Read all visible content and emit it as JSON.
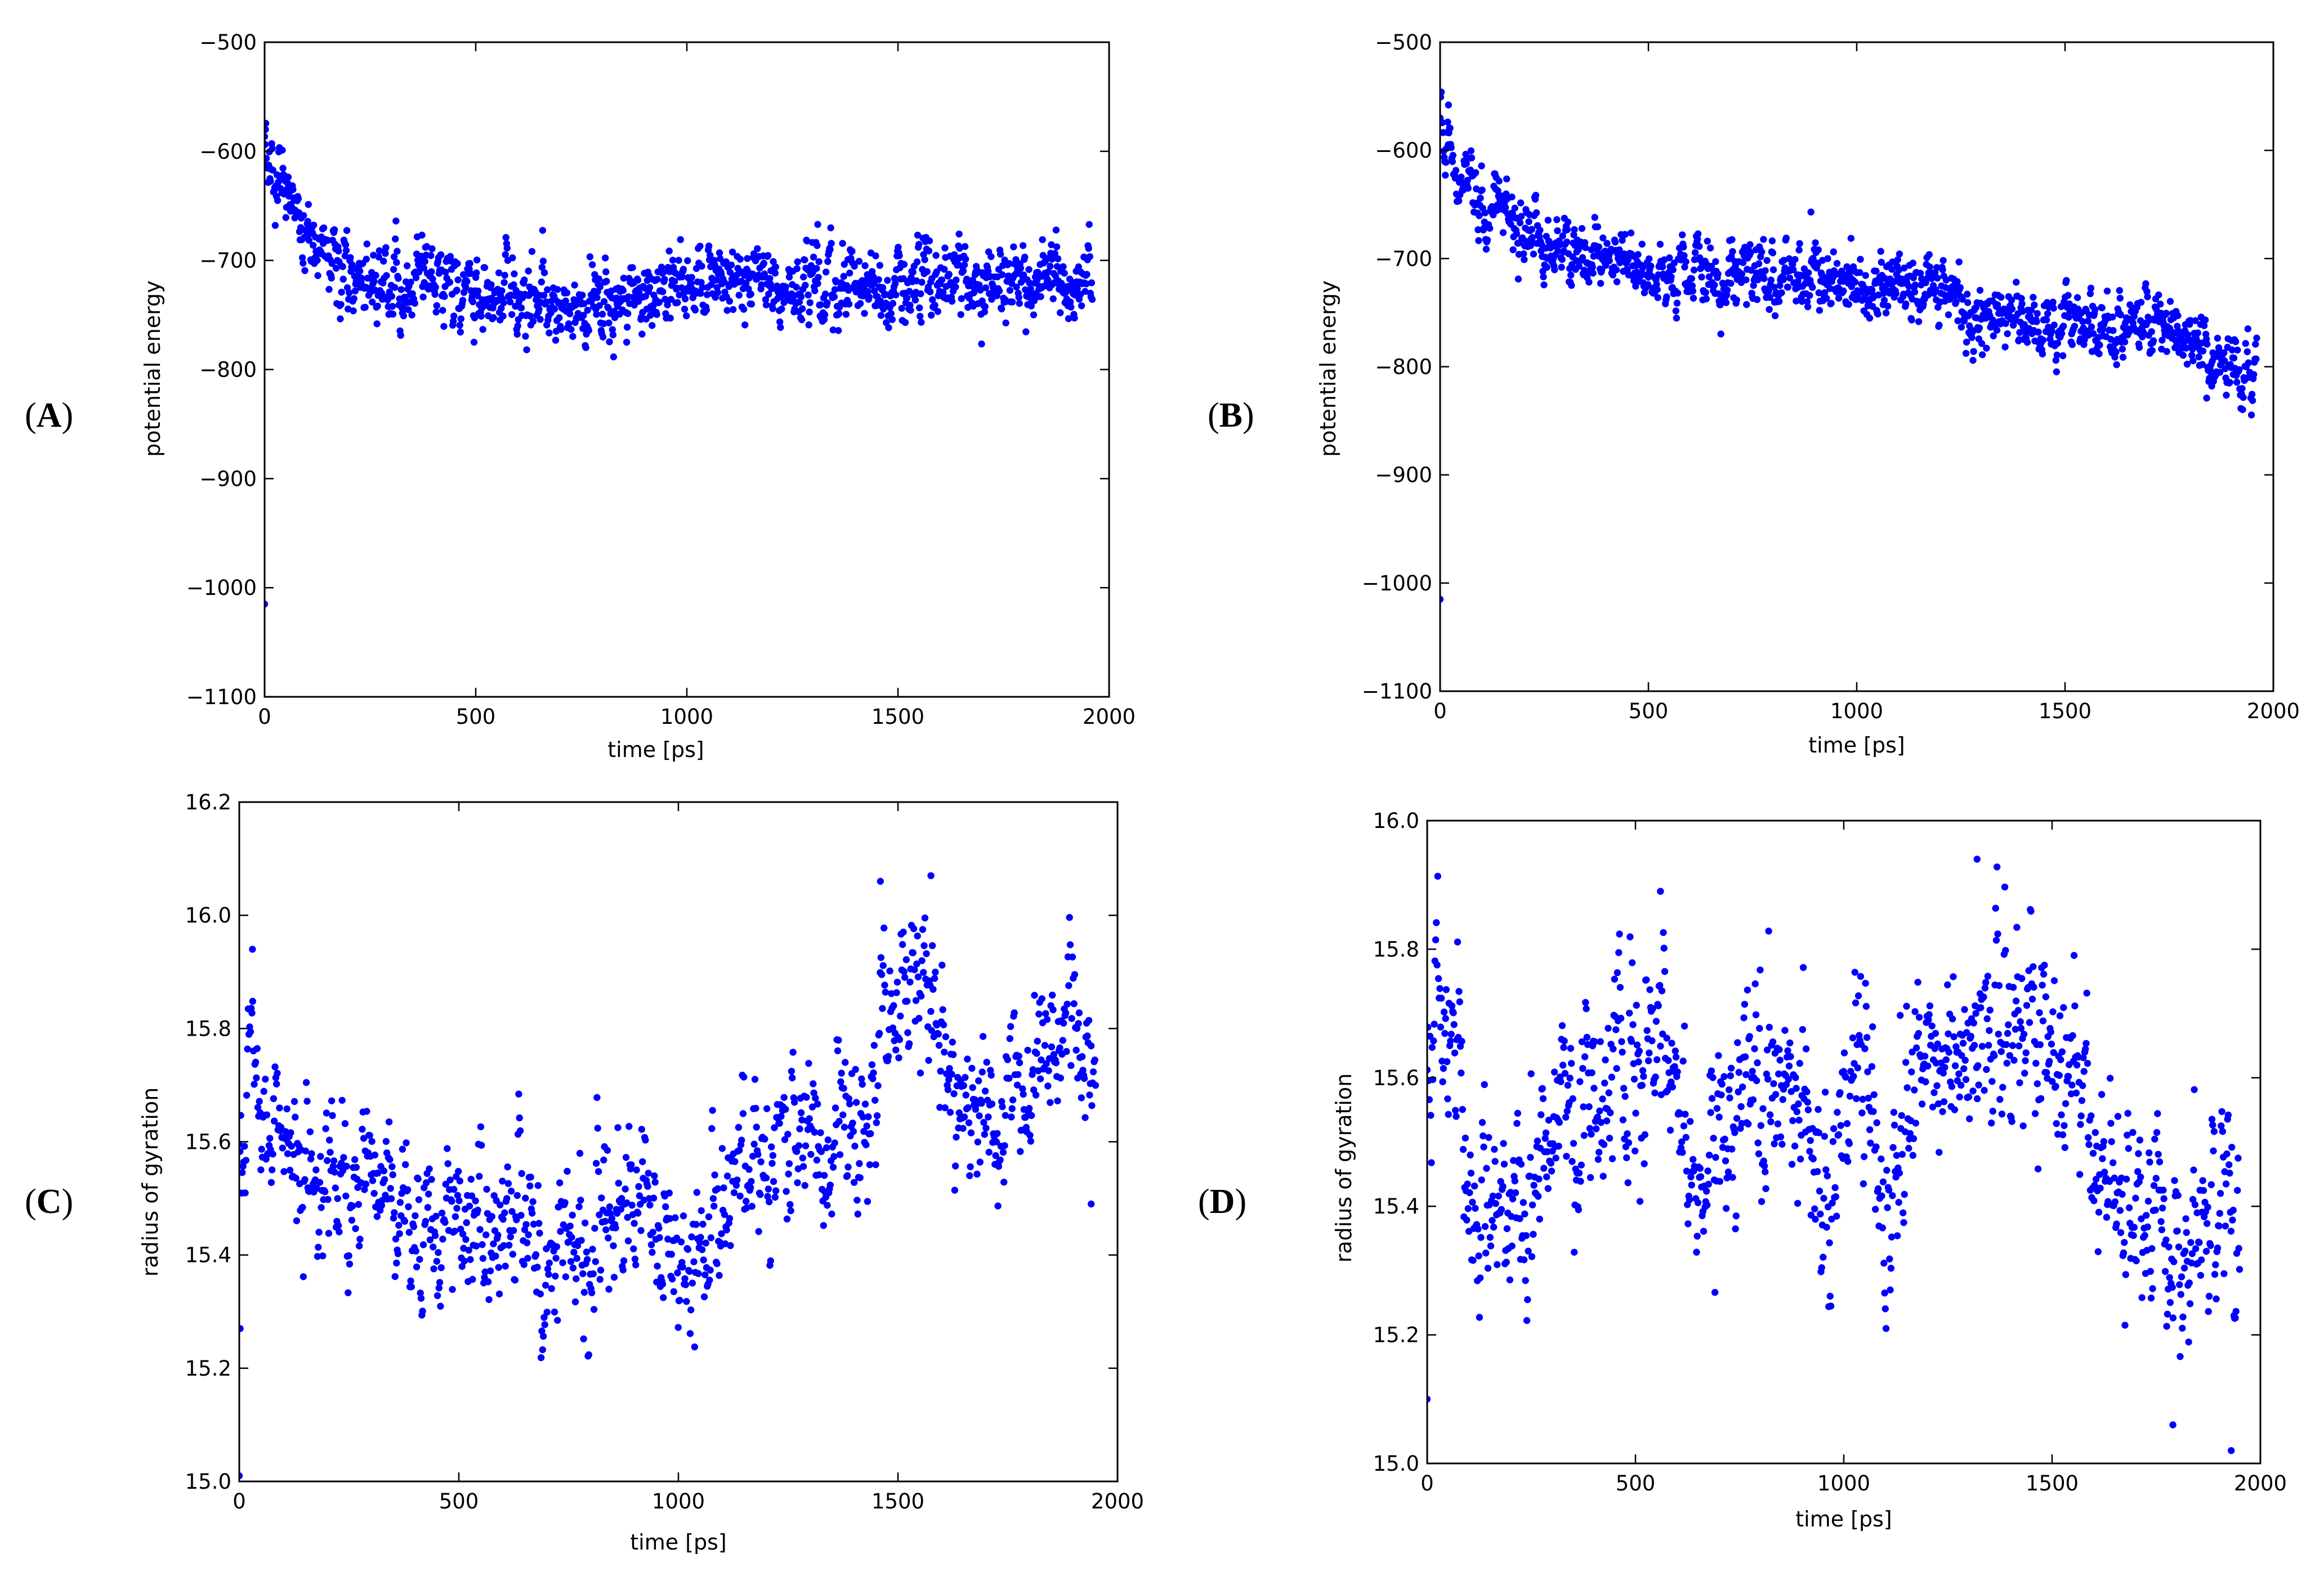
{
  "figure": {
    "marker_color": "#0000ff",
    "axes_color": "#000000",
    "panels": [
      "A",
      "B",
      "C",
      "D"
    ]
  },
  "chart_data": [
    {
      "panel": "A",
      "type": "scatter",
      "title": "",
      "xlabel": "time [ps]",
      "ylabel": "potential energy",
      "xlim": [
        0,
        2000
      ],
      "ylim": [
        -1100,
        -500
      ],
      "xticks": [
        0,
        500,
        1000,
        1500,
        2000
      ],
      "yticks": [
        -500,
        -600,
        -700,
        -800,
        -900,
        -1000,
        -1100
      ],
      "tick_labels_x": [
        "0",
        "500",
        "1000",
        "1500",
        "2000"
      ],
      "tick_labels_y": [
        "−500",
        "−600",
        "−700",
        "−800",
        "−900",
        "−1000",
        "−1100"
      ],
      "grid": false,
      "series": [
        {
          "name": "potential energy",
          "color": "#0000ff",
          "profile": "decay",
          "x_range": [
            0,
            1960
          ],
          "n_points": 1400,
          "start_value": -600,
          "plateau": -735,
          "tau_ps": 120,
          "drift_per_1000ps": 10,
          "dip": {
            "center": 720,
            "width": 130,
            "amount": -14
          },
          "noise_sd": 18,
          "outliers": [
            {
              "x": 0,
              "y": -1015
            },
            {
              "x": 2,
              "y": -580
            },
            {
              "x": 1310,
              "y": -667
            }
          ]
        }
      ]
    },
    {
      "panel": "B",
      "type": "scatter",
      "title": "",
      "xlabel": "time [ps]",
      "ylabel": "potential energy",
      "xlim": [
        0,
        2000
      ],
      "ylim": [
        -1100,
        -500
      ],
      "xticks": [
        0,
        500,
        1000,
        1500,
        2000
      ],
      "yticks": [
        -500,
        -600,
        -700,
        -800,
        -900,
        -1000,
        -1100
      ],
      "tick_labels_x": [
        "0",
        "500",
        "1000",
        "1500",
        "2000"
      ],
      "tick_labels_y": [
        "−500",
        "−600",
        "−700",
        "−800",
        "−900",
        "−1000",
        "−1100"
      ],
      "grid": false,
      "series": [
        {
          "name": "potential energy",
          "color": "#0000ff",
          "profile": "decay-drift",
          "x_range": [
            0,
            1960
          ],
          "n_points": 1400,
          "start_value": -585,
          "plateau": -690,
          "tau_ps": 110,
          "drift_per_1000ps": -33,
          "step": {
            "at": 1250,
            "amount": -22
          },
          "tail": {
            "from": 1750,
            "amount": -25
          },
          "noise_sd": 16,
          "outliers": [
            {
              "x": 0,
              "y": -1015
            },
            {
              "x": 20,
              "y": -558
            },
            {
              "x": 1840,
              "y": -829
            },
            {
              "x": 890,
              "y": -657
            }
          ]
        }
      ]
    },
    {
      "panel": "C",
      "type": "scatter",
      "title": "",
      "xlabel": "time [ps]",
      "ylabel": "radius of gyration",
      "xlim": [
        0,
        2000
      ],
      "ylim": [
        15.0,
        16.2
      ],
      "xticks": [
        0,
        500,
        1000,
        1500,
        2000
      ],
      "yticks": [
        15.0,
        15.2,
        15.4,
        15.6,
        15.8,
        16.0,
        16.2
      ],
      "tick_labels_x": [
        "0",
        "500",
        "1000",
        "1500",
        "2000"
      ],
      "tick_labels_y": [
        "15.0",
        "15.2",
        "15.4",
        "15.6",
        "15.8",
        "16.0",
        "16.2"
      ],
      "grid": false,
      "series": [
        {
          "name": "radius of gyration",
          "color": "#0000ff",
          "profile": "keyframes",
          "x_range": [
            0,
            1950
          ],
          "n_points": 1150,
          "trend": [
            [
              0,
              15.68
            ],
            [
              60,
              15.64
            ],
            [
              150,
              15.52
            ],
            [
              300,
              15.55
            ],
            [
              450,
              15.42
            ],
            [
              550,
              15.5
            ],
            [
              650,
              15.45
            ],
            [
              700,
              15.35
            ],
            [
              800,
              15.45
            ],
            [
              900,
              15.55
            ],
            [
              980,
              15.4
            ],
            [
              1050,
              15.38
            ],
            [
              1150,
              15.55
            ],
            [
              1250,
              15.62
            ],
            [
              1350,
              15.62
            ],
            [
              1420,
              15.6
            ],
            [
              1450,
              15.82
            ],
            [
              1550,
              15.85
            ],
            [
              1600,
              15.72
            ],
            [
              1700,
              15.63
            ],
            [
              1800,
              15.72
            ],
            [
              1900,
              15.8
            ],
            [
              1950,
              15.7
            ]
          ],
          "noise_sd": 0.075,
          "outliers": [
            {
              "x": 0,
              "y": 15.01
            },
            {
              "x": 2,
              "y": 15.27
            },
            {
              "x": 1575,
              "y": 16.07
            },
            {
              "x": 1460,
              "y": 16.06
            },
            {
              "x": 1940,
              "y": 15.49
            },
            {
              "x": 30,
              "y": 15.94
            }
          ]
        }
      ]
    },
    {
      "panel": "D",
      "type": "scatter",
      "title": "",
      "xlabel": "time [ps]",
      "ylabel": "radius of gyration",
      "xlim": [
        0,
        2000
      ],
      "ylim": [
        15.0,
        16.0
      ],
      "xticks": [
        0,
        500,
        1000,
        1500,
        2000
      ],
      "yticks": [
        15.0,
        15.2,
        15.4,
        15.6,
        15.8,
        16.0
      ],
      "tick_labels_x": [
        "0",
        "500",
        "1000",
        "1500",
        "2000"
      ],
      "tick_labels_y": [
        "15.0",
        "15.2",
        "15.4",
        "15.6",
        "15.8",
        "16.0"
      ],
      "grid": false,
      "series": [
        {
          "name": "radius of gyration",
          "color": "#0000ff",
          "profile": "keyframes",
          "x_range": [
            0,
            1950
          ],
          "n_points": 1150,
          "trend": [
            [
              0,
              15.68
            ],
            [
              60,
              15.62
            ],
            [
              120,
              15.4
            ],
            [
              250,
              15.4
            ],
            [
              300,
              15.52
            ],
            [
              400,
              15.56
            ],
            [
              500,
              15.62
            ],
            [
              560,
              15.68
            ],
            [
              650,
              15.48
            ],
            [
              780,
              15.58
            ],
            [
              900,
              15.55
            ],
            [
              960,
              15.4
            ],
            [
              1030,
              15.6
            ],
            [
              1100,
              15.42
            ],
            [
              1200,
              15.6
            ],
            [
              1300,
              15.68
            ],
            [
              1400,
              15.7
            ],
            [
              1550,
              15.62
            ],
            [
              1650,
              15.45
            ],
            [
              1750,
              15.4
            ],
            [
              1800,
              15.3
            ],
            [
              1880,
              15.42
            ],
            [
              1920,
              15.38
            ],
            [
              1950,
              15.2
            ]
          ],
          "noise_sd": 0.085,
          "outliers": [
            {
              "x": 0,
              "y": 15.1
            },
            {
              "x": 1320,
              "y": 15.94
            },
            {
              "x": 1930,
              "y": 15.02
            },
            {
              "x": 1790,
              "y": 15.06
            },
            {
              "x": 560,
              "y": 15.89
            }
          ]
        }
      ]
    }
  ]
}
